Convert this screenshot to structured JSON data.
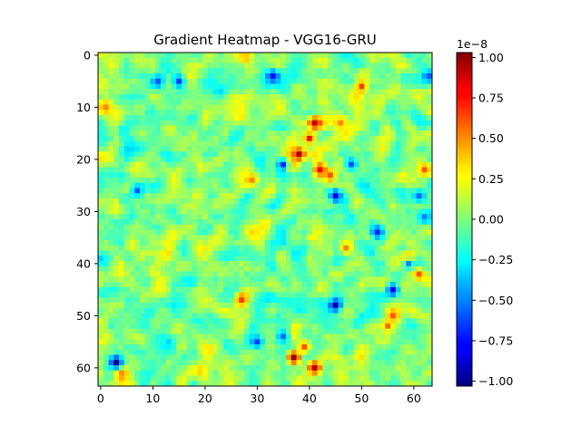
{
  "chart_data": {
    "type": "heatmap",
    "title": "Gradient Heatmap - VGG16-GRU",
    "xlabel": "",
    "ylabel": "",
    "grid_size": [
      64,
      64
    ],
    "xlim": [
      -0.5,
      63.5
    ],
    "ylim": [
      63.5,
      -0.5
    ],
    "x_ticks": [
      "0",
      "10",
      "20",
      "30",
      "40",
      "50",
      "60"
    ],
    "y_ticks": [
      "0",
      "10",
      "20",
      "30",
      "40",
      "50",
      "60"
    ],
    "colormap": "jet",
    "colorbar": {
      "range": [
        -1.03,
        1.03
      ],
      "ticks": [
        "1.00",
        "0.75",
        "0.50",
        "0.25",
        "0.00",
        "−0.25",
        "−0.50",
        "−0.75",
        "−1.00"
      ],
      "offset_label": "1e−8"
    },
    "hotspots": [
      {
        "x": 41,
        "y": 13,
        "v": 0.9
      },
      {
        "x": 40,
        "y": 16,
        "v": 0.75
      },
      {
        "x": 38,
        "y": 19,
        "v": 0.95
      },
      {
        "x": 36,
        "y": 21,
        "v": 0.7
      },
      {
        "x": 42,
        "y": 22,
        "v": 0.8
      },
      {
        "x": 44,
        "y": 23,
        "v": 0.6
      },
      {
        "x": 37,
        "y": 58,
        "v": 1.0
      },
      {
        "x": 41,
        "y": 60,
        "v": 0.9
      },
      {
        "x": 39,
        "y": 56,
        "v": 0.6
      },
      {
        "x": 50,
        "y": 6,
        "v": 0.65
      },
      {
        "x": 27,
        "y": 47,
        "v": 0.65
      },
      {
        "x": 59,
        "y": 39,
        "v": 0.8
      },
      {
        "x": 61,
        "y": 42,
        "v": 0.6
      },
      {
        "x": 56,
        "y": 50,
        "v": 0.6
      },
      {
        "x": 55,
        "y": 52,
        "v": 0.55
      },
      {
        "x": 4,
        "y": 61,
        "v": 0.55
      },
      {
        "x": 62,
        "y": 22,
        "v": 0.6
      },
      {
        "x": 1,
        "y": 10,
        "v": 0.5
      },
      {
        "x": 29,
        "y": 24,
        "v": 0.5
      },
      {
        "x": 47,
        "y": 37,
        "v": 0.5
      },
      {
        "x": 46,
        "y": 13,
        "v": 0.5
      }
    ],
    "coldspots": [
      {
        "x": 33,
        "y": 4,
        "v": -0.75
      },
      {
        "x": 35,
        "y": 21,
        "v": -0.7
      },
      {
        "x": 45,
        "y": 27,
        "v": -0.8
      },
      {
        "x": 45,
        "y": 48,
        "v": -0.95
      },
      {
        "x": 56,
        "y": 45,
        "v": -0.8
      },
      {
        "x": 53,
        "y": 34,
        "v": -0.7
      },
      {
        "x": 3,
        "y": 59,
        "v": -1.0
      },
      {
        "x": 63,
        "y": 4,
        "v": -0.6
      },
      {
        "x": 15,
        "y": 5,
        "v": -0.65
      },
      {
        "x": 11,
        "y": 5,
        "v": -0.6
      },
      {
        "x": 7,
        "y": 26,
        "v": -0.6
      },
      {
        "x": 61,
        "y": 27,
        "v": -0.55
      },
      {
        "x": 30,
        "y": 55,
        "v": -0.65
      },
      {
        "x": 35,
        "y": 54,
        "v": -0.55
      },
      {
        "x": 48,
        "y": 21,
        "v": -0.6
      },
      {
        "x": 62,
        "y": 31,
        "v": -0.5
      },
      {
        "x": 59,
        "y": 40,
        "v": -0.5
      }
    ]
  }
}
